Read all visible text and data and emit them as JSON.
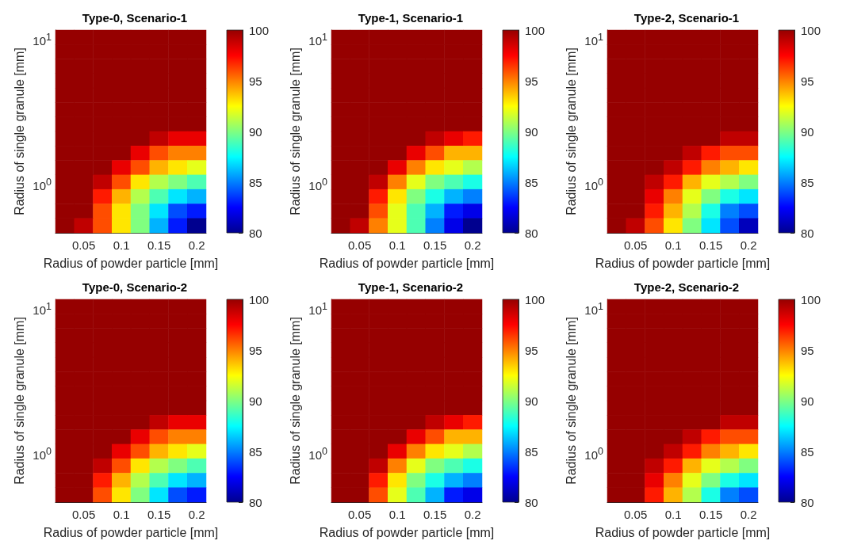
{
  "chart_data": [
    {
      "type": "heatmap",
      "title": "Type-0, Scenario-1",
      "xlabel": "Radius of powder particle [mm]",
      "ylabel": "Radius of single granule [mm]",
      "categories": [
        null,
        "0.05",
        null,
        "0.1",
        null,
        "0.15",
        null,
        "0.2"
      ],
      "y_categories": [
        "10$^{1}$",
        null,
        null,
        null,
        null,
        null,
        null,
        null,
        null,
        null,
        "10$^{0}$",
        null,
        null,
        null
      ],
      "clim": [
        80,
        100
      ],
      "cticks": [
        80,
        85,
        90,
        95,
        100
      ],
      "cells": [
        [
          100,
          100,
          100,
          100,
          100,
          100,
          100,
          100
        ],
        [
          100,
          100,
          100,
          100,
          100,
          100,
          100,
          100
        ],
        [
          100,
          100,
          100,
          100,
          100,
          100,
          100,
          100
        ],
        [
          100,
          100,
          100,
          100,
          100,
          100,
          100,
          100
        ],
        [
          100,
          100,
          100,
          100,
          100,
          100,
          100,
          100
        ],
        [
          100,
          100,
          100,
          100,
          100,
          100,
          100,
          100
        ],
        [
          100,
          100,
          100,
          100,
          100,
          100,
          100,
          100
        ],
        [
          100,
          100,
          100,
          100,
          100,
          99,
          98,
          98
        ],
        [
          100,
          100,
          100,
          100,
          98,
          96,
          95,
          95
        ],
        [
          100,
          100,
          100,
          98,
          96,
          94,
          93,
          92
        ],
        [
          100,
          100,
          99,
          96,
          93,
          91,
          90,
          89
        ],
        [
          100,
          100,
          97,
          94,
          91,
          89,
          87,
          86
        ],
        [
          100,
          100,
          96,
          93,
          90,
          87,
          84,
          83
        ],
        [
          100,
          99,
          96,
          93,
          90,
          86,
          83,
          80
        ]
      ]
    },
    {
      "type": "heatmap",
      "title": "Type-1, Scenario-1",
      "xlabel": "Radius of powder particle [mm]",
      "ylabel": "Radius of single granule [mm]",
      "categories": [
        null,
        "0.05",
        null,
        "0.1",
        null,
        "0.15",
        null,
        "0.2"
      ],
      "y_categories": [
        "10$^{1}$",
        null,
        null,
        null,
        null,
        null,
        null,
        null,
        null,
        null,
        "10$^{0}$",
        null,
        null,
        null
      ],
      "clim": [
        80,
        100
      ],
      "cticks": [
        80,
        85,
        90,
        95,
        100
      ],
      "cells": [
        [
          100,
          100,
          100,
          100,
          100,
          100,
          100,
          100
        ],
        [
          100,
          100,
          100,
          100,
          100,
          100,
          100,
          100
        ],
        [
          100,
          100,
          100,
          100,
          100,
          100,
          100,
          100
        ],
        [
          100,
          100,
          100,
          100,
          100,
          100,
          100,
          100
        ],
        [
          100,
          100,
          100,
          100,
          100,
          100,
          100,
          100
        ],
        [
          100,
          100,
          100,
          100,
          100,
          100,
          100,
          100
        ],
        [
          100,
          100,
          100,
          100,
          100,
          100,
          100,
          100
        ],
        [
          100,
          100,
          100,
          100,
          100,
          99,
          98,
          97
        ],
        [
          100,
          100,
          100,
          100,
          98,
          96,
          94,
          94
        ],
        [
          100,
          100,
          100,
          98,
          95,
          93,
          92,
          91
        ],
        [
          100,
          100,
          99,
          95,
          92,
          90,
          89,
          88
        ],
        [
          100,
          100,
          97,
          93,
          90,
          88,
          86,
          85
        ],
        [
          100,
          100,
          96,
          92,
          89,
          86,
          83,
          82
        ],
        [
          100,
          99,
          95,
          92,
          89,
          85,
          82,
          80
        ]
      ]
    },
    {
      "type": "heatmap",
      "title": "Type-2, Scenario-1",
      "xlabel": "Radius of powder particle [mm]",
      "ylabel": "Radius of single granule [mm]",
      "categories": [
        null,
        "0.05",
        null,
        "0.1",
        null,
        "0.15",
        null,
        "0.2"
      ],
      "y_categories": [
        "10$^{1}$",
        null,
        null,
        null,
        null,
        null,
        null,
        null,
        null,
        null,
        "10$^{0}$",
        null,
        null,
        null
      ],
      "clim": [
        80,
        100
      ],
      "cticks": [
        80,
        85,
        90,
        95,
        100
      ],
      "cells": [
        [
          100,
          100,
          100,
          100,
          100,
          100,
          100,
          100
        ],
        [
          100,
          100,
          100,
          100,
          100,
          100,
          100,
          100
        ],
        [
          100,
          100,
          100,
          100,
          100,
          100,
          100,
          100
        ],
        [
          100,
          100,
          100,
          100,
          100,
          100,
          100,
          100
        ],
        [
          100,
          100,
          100,
          100,
          100,
          100,
          100,
          100
        ],
        [
          100,
          100,
          100,
          100,
          100,
          100,
          100,
          100
        ],
        [
          100,
          100,
          100,
          100,
          100,
          100,
          100,
          100
        ],
        [
          100,
          100,
          100,
          100,
          100,
          100,
          99,
          99
        ],
        [
          100,
          100,
          100,
          100,
          99,
          97,
          96,
          96
        ],
        [
          100,
          100,
          100,
          99,
          97,
          95,
          94,
          93
        ],
        [
          100,
          100,
          99,
          97,
          94,
          92,
          91,
          90
        ],
        [
          100,
          100,
          98,
          95,
          92,
          90,
          88,
          87
        ],
        [
          100,
          100,
          97,
          94,
          91,
          88,
          85,
          84
        ],
        [
          100,
          99,
          96,
          93,
          90,
          87,
          84,
          81
        ]
      ]
    },
    {
      "type": "heatmap",
      "title": "Type-0, Scenario-2",
      "xlabel": "Radius of powder particle [mm]",
      "ylabel": "Radius of single granule [mm]",
      "categories": [
        null,
        "0.05",
        null,
        "0.1",
        null,
        "0.15",
        null,
        "0.2"
      ],
      "y_categories": [
        "10$^{1}$",
        null,
        null,
        null,
        null,
        null,
        null,
        null,
        null,
        null,
        "10$^{0}$",
        null,
        null,
        null
      ],
      "clim": [
        80,
        100
      ],
      "cticks": [
        80,
        85,
        90,
        95,
        100
      ],
      "cells": [
        [
          100,
          100,
          100,
          100,
          100,
          100,
          100,
          100
        ],
        [
          100,
          100,
          100,
          100,
          100,
          100,
          100,
          100
        ],
        [
          100,
          100,
          100,
          100,
          100,
          100,
          100,
          100
        ],
        [
          100,
          100,
          100,
          100,
          100,
          100,
          100,
          100
        ],
        [
          100,
          100,
          100,
          100,
          100,
          100,
          100,
          100
        ],
        [
          100,
          100,
          100,
          100,
          100,
          100,
          100,
          100
        ],
        [
          100,
          100,
          100,
          100,
          100,
          100,
          100,
          100
        ],
        [
          100,
          100,
          100,
          100,
          100,
          100,
          100,
          100
        ],
        [
          100,
          100,
          100,
          100,
          100,
          99,
          98,
          98
        ],
        [
          100,
          100,
          100,
          100,
          98,
          96,
          95,
          95
        ],
        [
          100,
          100,
          100,
          98,
          96,
          94,
          93,
          92
        ],
        [
          100,
          100,
          99,
          96,
          93,
          91,
          90,
          89
        ],
        [
          100,
          100,
          97,
          94,
          91,
          89,
          87,
          86
        ],
        [
          100,
          100,
          96,
          93,
          90,
          87,
          84,
          83
        ]
      ]
    },
    {
      "type": "heatmap",
      "title": "Type-1, Scenario-2",
      "xlabel": "Radius of powder particle [mm]",
      "ylabel": "Radius of single granule [mm]",
      "categories": [
        null,
        "0.05",
        null,
        "0.1",
        null,
        "0.15",
        null,
        "0.2"
      ],
      "y_categories": [
        "10$^{1}$",
        null,
        null,
        null,
        null,
        null,
        null,
        null,
        null,
        null,
        "10$^{0}$",
        null,
        null,
        null
      ],
      "clim": [
        80,
        100
      ],
      "cticks": [
        80,
        85,
        90,
        95,
        100
      ],
      "cells": [
        [
          100,
          100,
          100,
          100,
          100,
          100,
          100,
          100
        ],
        [
          100,
          100,
          100,
          100,
          100,
          100,
          100,
          100
        ],
        [
          100,
          100,
          100,
          100,
          100,
          100,
          100,
          100
        ],
        [
          100,
          100,
          100,
          100,
          100,
          100,
          100,
          100
        ],
        [
          100,
          100,
          100,
          100,
          100,
          100,
          100,
          100
        ],
        [
          100,
          100,
          100,
          100,
          100,
          100,
          100,
          100
        ],
        [
          100,
          100,
          100,
          100,
          100,
          100,
          100,
          100
        ],
        [
          100,
          100,
          100,
          100,
          100,
          100,
          100,
          100
        ],
        [
          100,
          100,
          100,
          100,
          100,
          99,
          98,
          97
        ],
        [
          100,
          100,
          100,
          100,
          98,
          96,
          94,
          94
        ],
        [
          100,
          100,
          100,
          98,
          95,
          93,
          92,
          91
        ],
        [
          100,
          100,
          99,
          95,
          92,
          90,
          89,
          88
        ],
        [
          100,
          100,
          97,
          93,
          90,
          88,
          86,
          85
        ],
        [
          100,
          100,
          96,
          92,
          89,
          86,
          83,
          82
        ]
      ]
    },
    {
      "type": "heatmap",
      "title": "Type-2, Scenario-2",
      "xlabel": "Radius of powder particle [mm]",
      "ylabel": "Radius of single granule [mm]",
      "categories": [
        null,
        "0.05",
        null,
        "0.1",
        null,
        "0.15",
        null,
        "0.2"
      ],
      "y_categories": [
        "10$^{1}$",
        null,
        null,
        null,
        null,
        null,
        null,
        null,
        null,
        null,
        "10$^{0}$",
        null,
        null,
        null
      ],
      "clim": [
        80,
        100
      ],
      "cticks": [
        80,
        85,
        90,
        95,
        100
      ],
      "cells": [
        [
          100,
          100,
          100,
          100,
          100,
          100,
          100,
          100
        ],
        [
          100,
          100,
          100,
          100,
          100,
          100,
          100,
          100
        ],
        [
          100,
          100,
          100,
          100,
          100,
          100,
          100,
          100
        ],
        [
          100,
          100,
          100,
          100,
          100,
          100,
          100,
          100
        ],
        [
          100,
          100,
          100,
          100,
          100,
          100,
          100,
          100
        ],
        [
          100,
          100,
          100,
          100,
          100,
          100,
          100,
          100
        ],
        [
          100,
          100,
          100,
          100,
          100,
          100,
          100,
          100
        ],
        [
          100,
          100,
          100,
          100,
          100,
          100,
          100,
          100
        ],
        [
          100,
          100,
          100,
          100,
          100,
          100,
          99,
          99
        ],
        [
          100,
          100,
          100,
          100,
          99,
          97,
          96,
          96
        ],
        [
          100,
          100,
          100,
          99,
          97,
          95,
          94,
          93
        ],
        [
          100,
          100,
          99,
          97,
          94,
          92,
          91,
          90
        ],
        [
          100,
          100,
          98,
          95,
          92,
          90,
          88,
          87
        ],
        [
          100,
          100,
          97,
          94,
          91,
          88,
          85,
          84
        ]
      ]
    }
  ]
}
